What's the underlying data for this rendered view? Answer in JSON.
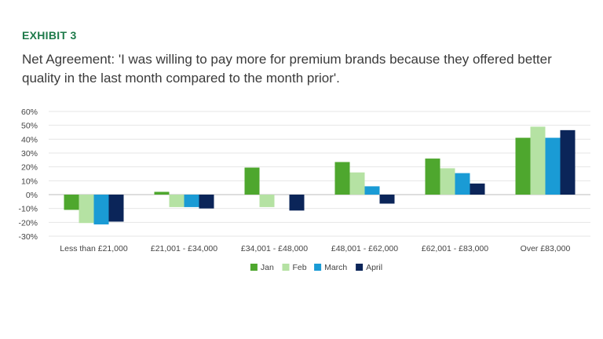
{
  "exhibit_label": "EXHIBIT 3",
  "title": "Net Agreement: 'I was willing to pay more for premium brands because they offered better quality in the last month compared to the month prior'.",
  "chart_data": {
    "type": "bar",
    "categories": [
      "Less than £21,000",
      "£21,001 - £34,000",
      "£34,001 - £48,000",
      "£48,001 - £62,000",
      "£62,001 - £83,000",
      "Over £83,000"
    ],
    "series": [
      {
        "name": "Jan",
        "color": "#4ea72e",
        "values": [
          -11,
          2,
          19.5,
          23.5,
          26,
          41
        ]
      },
      {
        "name": "Feb",
        "color": "#b5e2a3",
        "values": [
          -20.5,
          -9,
          -9,
          16,
          19,
          49
        ]
      },
      {
        "name": "March",
        "color": "#1a9bd5",
        "values": [
          -21.5,
          -9,
          0,
          6,
          15.5,
          41
        ]
      },
      {
        "name": "April",
        "color": "#0b2559",
        "values": [
          -19.5,
          -10,
          -11.5,
          -6.5,
          8,
          46.5
        ]
      }
    ],
    "ylim": [
      -30,
      60
    ],
    "yticks": [
      -30,
      -20,
      -10,
      0,
      10,
      20,
      30,
      40,
      50,
      60
    ],
    "ytick_labels": [
      "-30%",
      "-20%",
      "-10%",
      "0%",
      "10%",
      "20%",
      "30%",
      "40%",
      "50%",
      "60%"
    ],
    "xlabel": "",
    "ylabel": "",
    "grid": true,
    "legend_position": "bottom-center"
  }
}
